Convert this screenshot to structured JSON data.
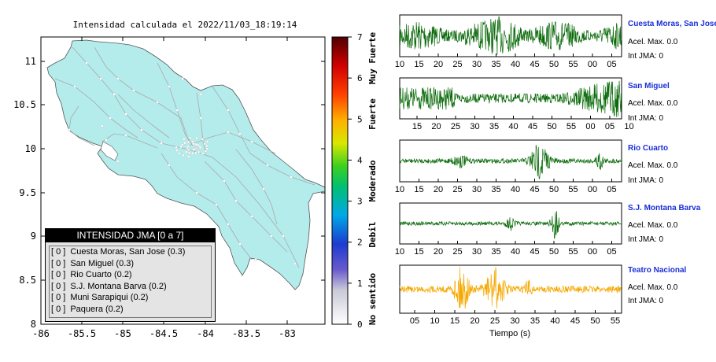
{
  "map": {
    "title": "Intensidad calculada el 2022/11/03_18:19:14",
    "lon_ticks": [
      "-86",
      "-85.5",
      "-85",
      "-84.5",
      "-84",
      "-83.5",
      "-83"
    ],
    "lat_ticks": [
      "11",
      "10.5",
      "10",
      "9.5",
      "9",
      "8.5",
      "8"
    ],
    "land_color": "#b4ecec",
    "road_color": "#a8a8a8"
  },
  "scale": {
    "ticks": [
      "0",
      "1",
      "2",
      "3",
      "4",
      "5",
      "6",
      "7"
    ],
    "labels": [
      "No sentido",
      "Debil",
      "Moderado",
      "Fuerte",
      "Muy Fuerte"
    ]
  },
  "intensity_panel": {
    "header": "INTENSIDAD JMA [0 a 7]",
    "rows": [
      {
        "level": "[ 0 ]",
        "name": "Cuesta Moras, San Jose (0.3)"
      },
      {
        "level": "[ 0 ]",
        "name": "San Miguel (0.3)"
      },
      {
        "level": "[ 0 ]",
        "name": "Rio Cuarto (0.2)"
      },
      {
        "level": "[ 0 ]",
        "name": "S.J. Montana Barva (0.2)"
      },
      {
        "level": "[ 0 ]",
        "name": "Muni Sarapiqui (0.2)"
      },
      {
        "level": "[ 0 ]",
        "name": "Paquera (0.2)"
      }
    ]
  },
  "traces": [
    {
      "name": "Cuesta Moras, San Jose",
      "acel": "Acel. Max. 0.0",
      "int": "Int JMA: 0",
      "color": "#0a6a0a",
      "ticks": [
        "10",
        "15",
        "20",
        "25",
        "30",
        "35",
        "40",
        "45",
        "50",
        "55",
        "00",
        "05"
      ]
    },
    {
      "name": "San Miguel",
      "acel": "Acel. Max. 0.0",
      "int": "Int JMA: 0",
      "color": "#0a6a0a",
      "ticks": [
        "15",
        "20",
        "25",
        "30",
        "35",
        "40",
        "45",
        "50",
        "55",
        "00",
        "05",
        "10"
      ]
    },
    {
      "name": "Rio Cuarto",
      "acel": "Acel. Max. 0.0",
      "int": "Int JMA: 0",
      "color": "#0a6a0a",
      "ticks": [
        "10",
        "15",
        "20",
        "25",
        "30",
        "35",
        "40",
        "45",
        "50",
        "55",
        "00",
        "05"
      ]
    },
    {
      "name": "S.J. Montana Barva",
      "acel": "Acel. Max. 0.0",
      "int": "Int JMA: 0",
      "color": "#0a6a0a",
      "ticks": [
        "10",
        "15",
        "20",
        "25",
        "30",
        "35",
        "40",
        "45",
        "50",
        "55",
        "00",
        "05"
      ]
    },
    {
      "name": "Teatro Nacional",
      "acel": "Acel. Max. 0.0",
      "int": "Int JMA: 0",
      "color": "#f5a800",
      "ticks": [
        "05",
        "10",
        "15",
        "20",
        "25",
        "30",
        "35",
        "40",
        "45",
        "50",
        "55"
      ]
    }
  ],
  "time_axis_label": "Tiempo (s)"
}
